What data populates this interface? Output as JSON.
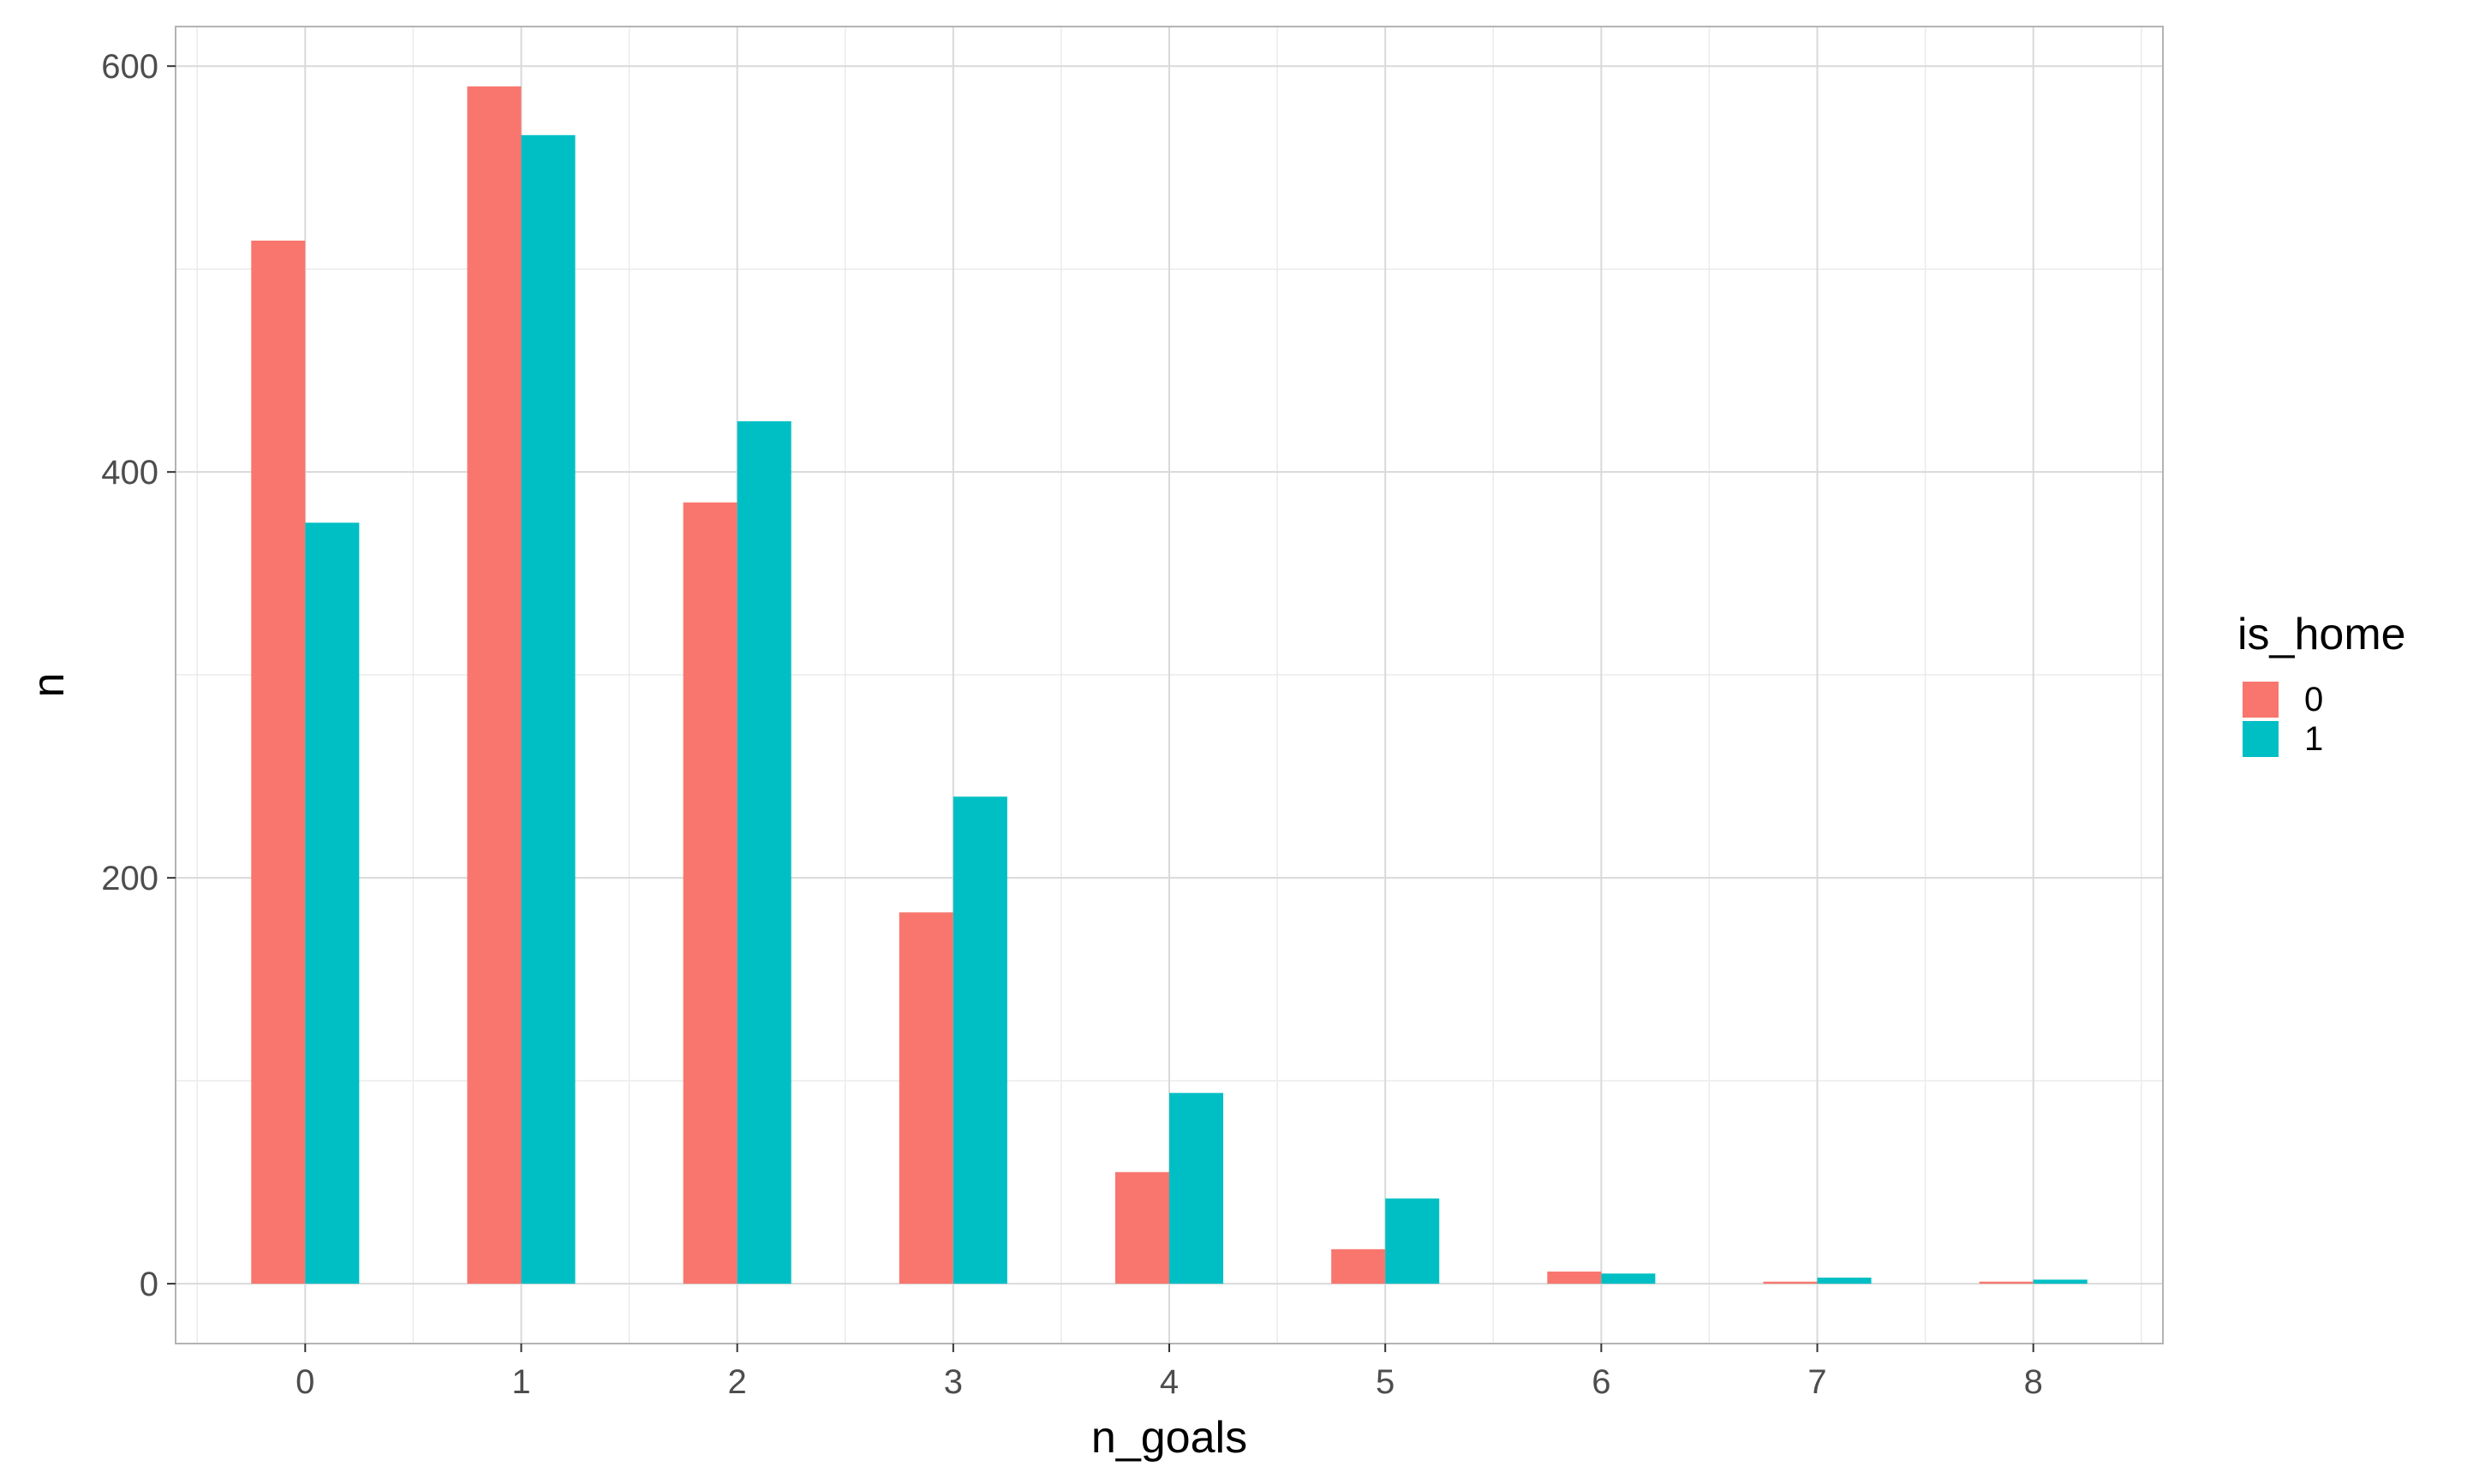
{
  "chart_data": {
    "type": "bar",
    "xlabel": "n_goals",
    "ylabel": "n",
    "categories": [
      "0",
      "1",
      "2",
      "3",
      "4",
      "5",
      "6",
      "7",
      "8"
    ],
    "series": [
      {
        "name": "0",
        "color": "#F8766D",
        "values": [
          514,
          590,
          385,
          183,
          55,
          17,
          6,
          1,
          1
        ]
      },
      {
        "name": "1",
        "color": "#00BFC4",
        "values": [
          375,
          566,
          425,
          240,
          94,
          42,
          5,
          3,
          2
        ]
      }
    ],
    "ylim": [
      -29.5,
      619.5
    ],
    "yticks": [
      0,
      200,
      400,
      600
    ],
    "grid": true,
    "legend": {
      "title": "is_home",
      "position": "right"
    },
    "colors": {
      "panel_border": "#b3b3b3",
      "grid_major": "#d9d9d9",
      "grid_minor": "#ebebeb"
    }
  }
}
